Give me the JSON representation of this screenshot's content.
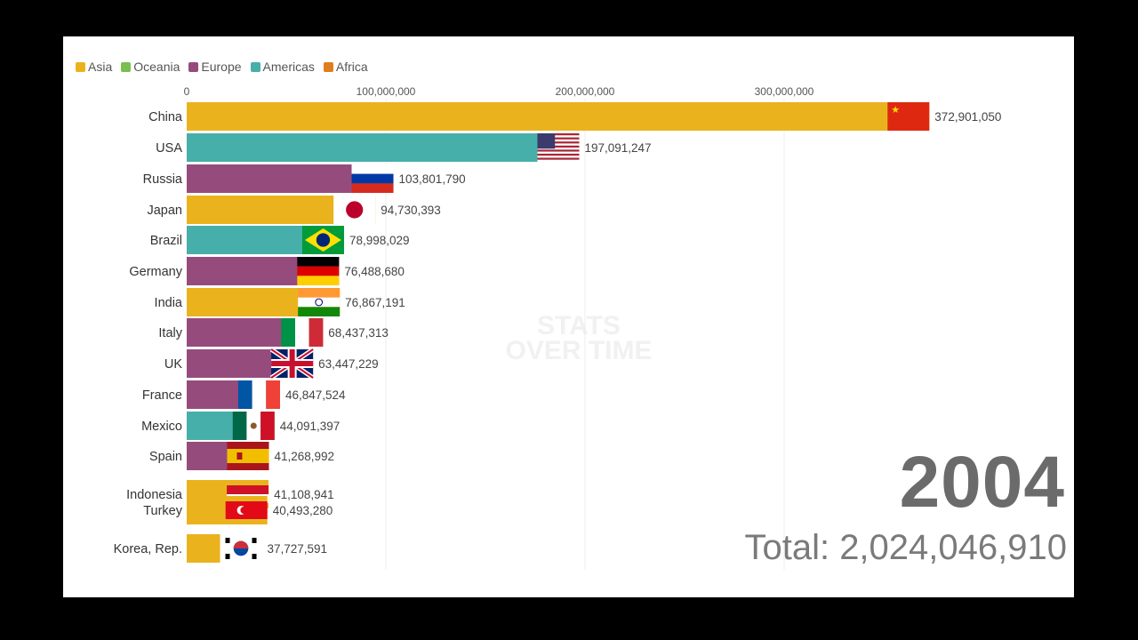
{
  "legend": [
    {
      "name": "Asia",
      "color": "#EAB31E"
    },
    {
      "name": "Oceania",
      "color": "#78BE50"
    },
    {
      "name": "Europe",
      "color": "#964B7D"
    },
    {
      "name": "Americas",
      "color": "#46AFAA"
    },
    {
      "name": "Africa",
      "color": "#E07D1E"
    }
  ],
  "watermark": [
    "STATS",
    "OVER TIME"
  ],
  "year": "2004",
  "total": "Total: 2,024,046,910",
  "chart_data": {
    "type": "bar",
    "orientation": "horizontal",
    "xlim": [
      0,
      400000000
    ],
    "ticks": [
      {
        "value": 0,
        "label": "0"
      },
      {
        "value": 100000000,
        "label": "100,000,000"
      },
      {
        "value": 200000000,
        "label": "200,000,000"
      },
      {
        "value": 300000000,
        "label": "300,000,000"
      }
    ],
    "bars": [
      {
        "country": "China",
        "value": 372901050,
        "label": "372,901,050",
        "region": "Asia",
        "flag": "china-flag-icon"
      },
      {
        "country": "USA",
        "value": 197091247,
        "label": "197,091,247",
        "region": "Americas",
        "flag": "usa-flag-icon"
      },
      {
        "country": "Russia",
        "value": 103801790,
        "label": "103,801,790",
        "region": "Europe",
        "flag": "russia-flag-icon"
      },
      {
        "country": "Japan",
        "value": 94730393,
        "label": "94,730,393",
        "region": "Asia",
        "flag": "japan-flag-icon"
      },
      {
        "country": "Brazil",
        "value": 78998029,
        "label": "78,998,029",
        "region": "Americas",
        "flag": "brazil-flag-icon"
      },
      {
        "country": "Germany",
        "value": 76488680,
        "label": "76,488,680",
        "region": "Europe",
        "flag": "germany-flag-icon"
      },
      {
        "country": "India",
        "value": 76867191,
        "label": "76,867,191",
        "region": "Asia",
        "flag": "india-flag-icon"
      },
      {
        "country": "Italy",
        "value": 68437313,
        "label": "68,437,313",
        "region": "Europe",
        "flag": "italy-flag-icon"
      },
      {
        "country": "UK",
        "value": 63447229,
        "label": "63,447,229",
        "region": "Europe",
        "flag": "uk-flag-icon"
      },
      {
        "country": "France",
        "value": 46847524,
        "label": "46,847,524",
        "region": "Europe",
        "flag": "france-flag-icon"
      },
      {
        "country": "Mexico",
        "value": 44091397,
        "label": "44,091,397",
        "region": "Americas",
        "flag": "mexico-flag-icon"
      },
      {
        "country": "Spain",
        "value": 41268992,
        "label": "41,268,992",
        "region": "Europe",
        "flag": "spain-flag-icon"
      },
      {
        "country": "Indonesia",
        "value": 41108941,
        "label": "41,108,941",
        "region": "Asia",
        "flag": "indonesia-flag-icon"
      },
      {
        "country": "Turkey",
        "value": 40493280,
        "label": "40,493,280",
        "region": "Asia",
        "flag": "turkey-flag-icon"
      },
      {
        "country": "Korea, Rep.",
        "value": 37727591,
        "label": "37,727,591",
        "region": "Asia",
        "flag": "korea-flag-icon"
      }
    ]
  }
}
